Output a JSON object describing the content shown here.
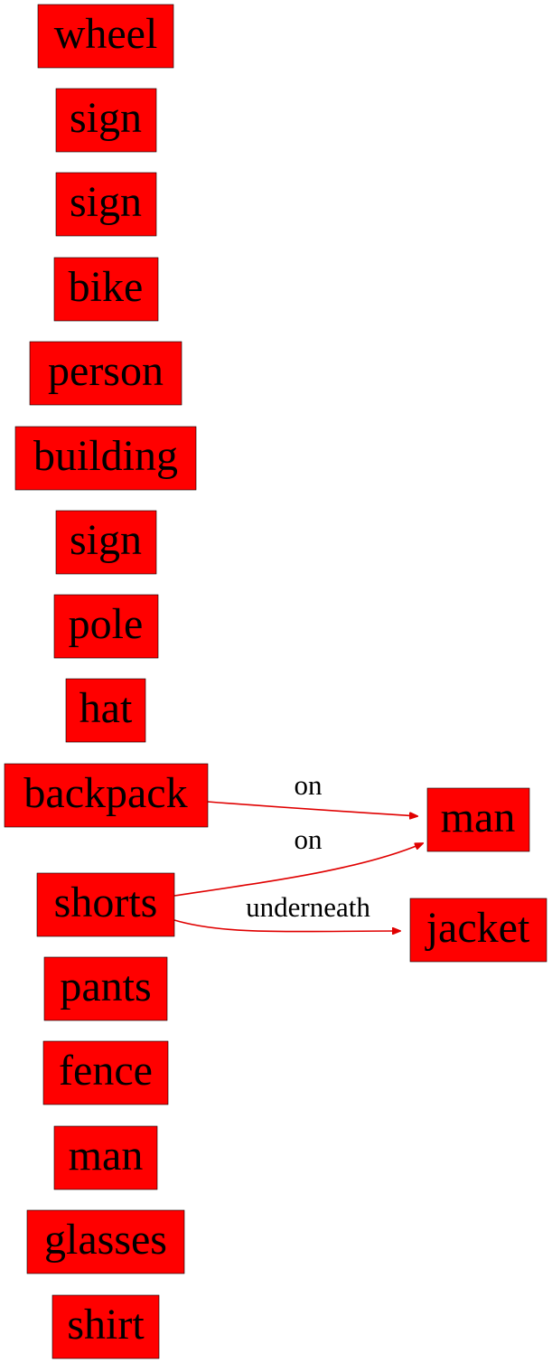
{
  "nodes": [
    {
      "id": "n1",
      "label": "wheel"
    },
    {
      "id": "n2",
      "label": "sign"
    },
    {
      "id": "n3",
      "label": "sign"
    },
    {
      "id": "n4",
      "label": "bike"
    },
    {
      "id": "n5",
      "label": "person"
    },
    {
      "id": "n6",
      "label": "building"
    },
    {
      "id": "n7",
      "label": "sign"
    },
    {
      "id": "n8",
      "label": "pole"
    },
    {
      "id": "n9",
      "label": "hat"
    },
    {
      "id": "n10",
      "label": "backpack"
    },
    {
      "id": "n11",
      "label": "shorts"
    },
    {
      "id": "n12",
      "label": "pants"
    },
    {
      "id": "n13",
      "label": "fence"
    },
    {
      "id": "n14",
      "label": "man"
    },
    {
      "id": "n15",
      "label": "glasses"
    },
    {
      "id": "n16",
      "label": "shirt"
    },
    {
      "id": "n17",
      "label": "man"
    },
    {
      "id": "n18",
      "label": "jacket"
    }
  ],
  "edges": [
    {
      "from": "n10",
      "to": "n17",
      "label": "on"
    },
    {
      "from": "n11",
      "to": "n17",
      "label": "on"
    },
    {
      "from": "n11",
      "to": "n18",
      "label": "underneath"
    }
  ],
  "colors": {
    "node_fill": "#ff0000",
    "edge": "#e00000",
    "text": "#000000"
  }
}
